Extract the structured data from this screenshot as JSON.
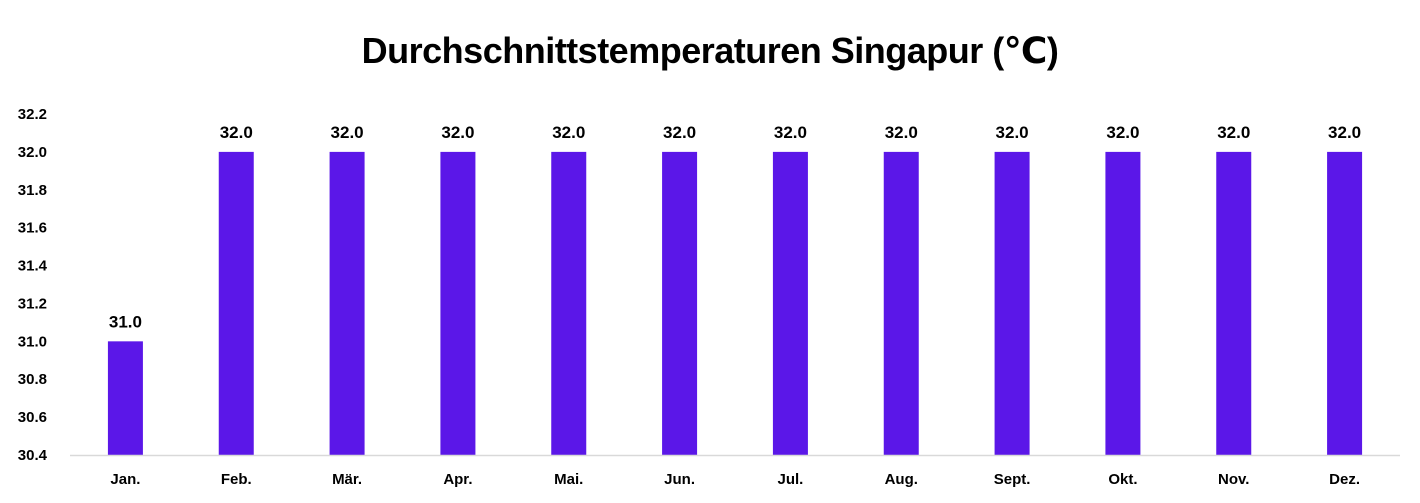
{
  "chart_data": {
    "type": "bar",
    "title": "Durchschnittstemperaturen Singapur (℃)",
    "categories": [
      "Jan.",
      "Feb.",
      "Mär.",
      "Apr.",
      "Mai.",
      "Jun.",
      "Jul.",
      "Aug.",
      "Sept.",
      "Okt.",
      "Nov.",
      "Dez."
    ],
    "values": [
      31.0,
      32.0,
      32.0,
      32.0,
      32.0,
      32.0,
      32.0,
      32.0,
      32.0,
      32.0,
      32.0,
      32.0
    ],
    "value_labels": [
      "31.0",
      "32.0",
      "32.0",
      "32.0",
      "32.0",
      "32.0",
      "32.0",
      "32.0",
      "32.0",
      "32.0",
      "32.0",
      "32.0"
    ],
    "yticks": [
      "30.4",
      "30.6",
      "30.8",
      "31.0",
      "31.2",
      "31.4",
      "31.6",
      "31.8",
      "32.0",
      "32.2"
    ],
    "ylim": [
      30.4,
      32.2
    ],
    "xlabel": "",
    "ylabel": "",
    "grid": false,
    "bar_color": "#5b17e8",
    "axis_color": "#d9d9d9"
  }
}
